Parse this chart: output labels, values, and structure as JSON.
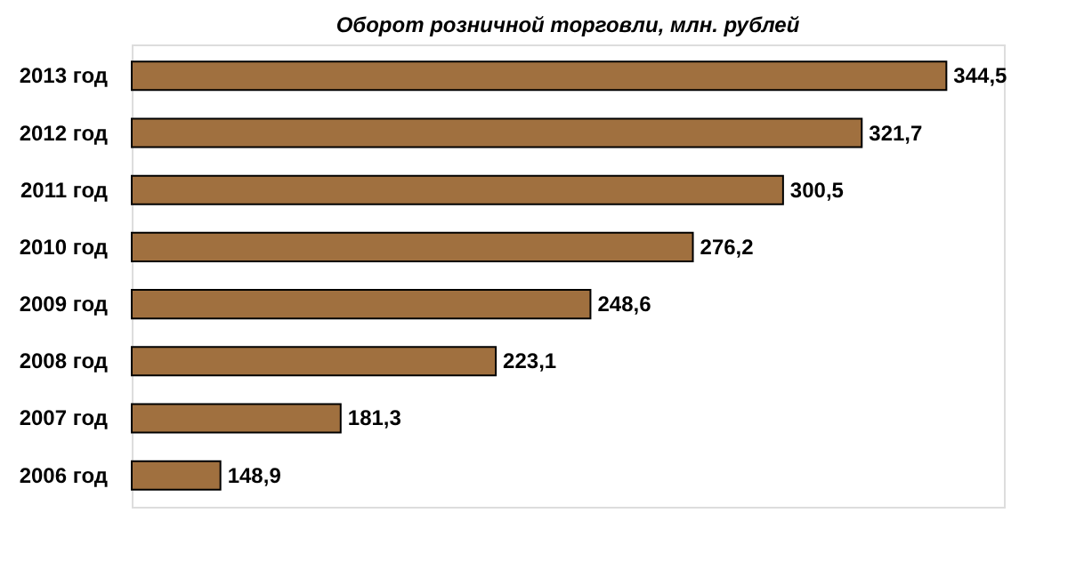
{
  "chart_data": {
    "type": "bar",
    "orientation": "horizontal",
    "title": "Оборот розничной торговли, млн. рублей",
    "categories": [
      "2013 год",
      "2012 год",
      "2011 год",
      "2010 год",
      "2009 год",
      "2008 год",
      "2007 год",
      "2006 год"
    ],
    "values": [
      344.5,
      321.7,
      300.5,
      276.2,
      248.6,
      223.1,
      181.3,
      148.9
    ],
    "value_labels": [
      "344,5",
      "321,7",
      "300,5",
      "276,2",
      "248,6",
      "223,1",
      "181,3",
      "148,9"
    ],
    "color": "#a0703f",
    "xlim": [
      125,
      360
    ],
    "tick_labels": "y",
    "grid": false
  }
}
